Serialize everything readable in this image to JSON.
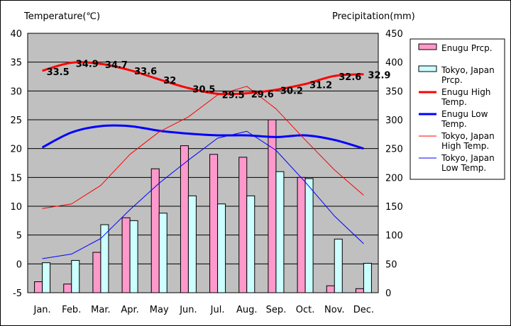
{
  "chart_data": {
    "type": "bar+line",
    "y_left_label": "Temperature(℃)",
    "y_right_label": "Precipitation(mm)",
    "y_left_ticks": [
      40,
      35,
      30,
      25,
      20,
      15,
      10,
      5,
      0,
      -5
    ],
    "y_right_ticks": [
      450,
      400,
      350,
      300,
      250,
      200,
      150,
      100,
      50,
      0
    ],
    "ylim_left": [
      -5,
      40
    ],
    "ylim_right": [
      0,
      450
    ],
    "categories": [
      "Jan.",
      "Feb.",
      "Mar.",
      "Apr.",
      "May",
      "Jun.",
      "Jul.",
      "Aug.",
      "Sep.",
      "Oct.",
      "Nov.",
      "Dec."
    ],
    "bar_series": [
      {
        "name": "Enugu Prcp.",
        "color": "#ff99cc",
        "values": [
          19,
          15,
          70,
          130,
          215,
          255,
          240,
          235,
          300,
          200,
          12,
          7
        ]
      },
      {
        "name": "Tokyo, Japan Prcp.",
        "color": "#ccffff",
        "values": [
          52,
          56,
          118,
          125,
          138,
          168,
          154,
          168,
          210,
          198,
          93,
          51
        ]
      }
    ],
    "line_series": [
      {
        "name": "Enugu High Temp.",
        "color": "#ff0000",
        "width": 3,
        "values": [
          33.5,
          34.9,
          34.7,
          33.6,
          32,
          30.5,
          29.5,
          29.6,
          30.2,
          31.2,
          32.6,
          32.9
        ]
      },
      {
        "name": "Enugu Low Temp.",
        "color": "#0000ff",
        "width": 3,
        "values": [
          20.2,
          22.8,
          23.9,
          23.9,
          23.1,
          22.6,
          22.3,
          22.3,
          22.0,
          22.3,
          21.5,
          20.0
        ]
      },
      {
        "name": "Tokyo, Japan High Temp.",
        "color": "#ff0000",
        "width": 1,
        "values": [
          9.6,
          10.4,
          13.6,
          19.0,
          22.9,
          25.5,
          29.3,
          30.8,
          26.9,
          21.5,
          16.3,
          11.9
        ]
      },
      {
        "name": "Tokyo, Japan Low Temp.",
        "color": "#0000ff",
        "width": 1,
        "values": [
          0.9,
          1.7,
          4.4,
          9.4,
          14.0,
          18.0,
          21.8,
          23.0,
          19.7,
          14.2,
          8.3,
          3.5
        ]
      }
    ],
    "data_labels": [
      "33.5",
      "34.9",
      "34.7",
      "33.6",
      "32",
      "30.5",
      "29.5",
      "29.6",
      "30.2",
      "31.2",
      "32.6",
      "32.9"
    ],
    "legend": [
      {
        "text": [
          "Enugu Prcp."
        ],
        "kind": "bar",
        "color": "#ff99cc"
      },
      {
        "text": [
          "Tokyo, Japan",
          "Prcp."
        ],
        "kind": "bar",
        "color": "#ccffff"
      },
      {
        "text": [
          "Enugu High",
          "Temp."
        ],
        "kind": "line",
        "color": "#ff0000",
        "width": 3
      },
      {
        "text": [
          "Enugu Low",
          "Temp."
        ],
        "kind": "line",
        "color": "#0000ff",
        "width": 3
      },
      {
        "text": [
          "Tokyo, Japan",
          "High Temp."
        ],
        "kind": "line",
        "color": "#ff0000",
        "width": 1
      },
      {
        "text": [
          "Tokyo, Japan",
          "Low Temp."
        ],
        "kind": "line",
        "color": "#0000ff",
        "width": 1
      }
    ],
    "legend_placement": "right",
    "plot_background": "#c0c0c0",
    "grid": true
  }
}
